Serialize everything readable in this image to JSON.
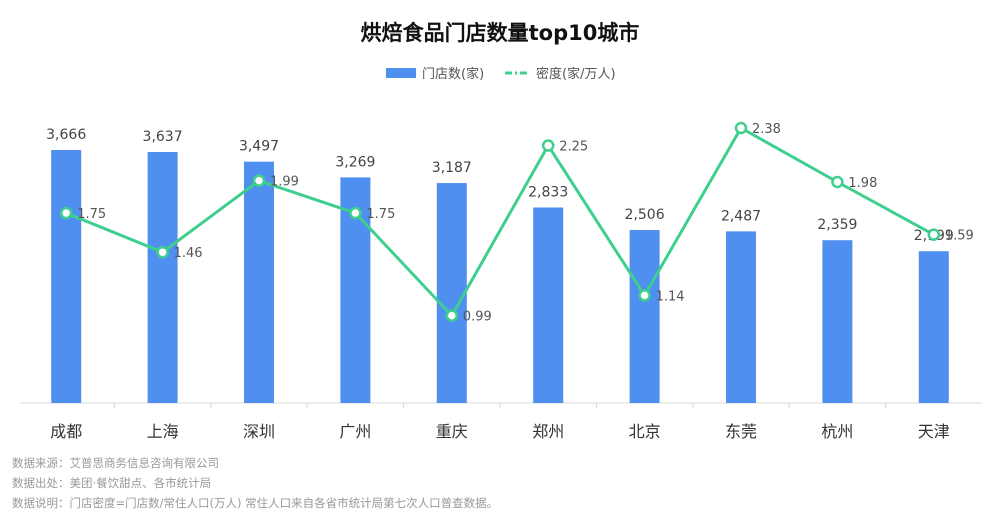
{
  "chart_data": {
    "type": "bar",
    "title": "烘焙食品门店数量top10城市",
    "categories": [
      "成都",
      "上海",
      "深圳",
      "广州",
      "重庆",
      "郑州",
      "北京",
      "东莞",
      "杭州",
      "天津"
    ],
    "series": [
      {
        "name": "门店数(家)",
        "type": "bar",
        "axis": "left",
        "values": [
          3666,
          3637,
          3497,
          3269,
          3187,
          2833,
          2506,
          2487,
          2359,
          2199
        ],
        "labels": [
          "3,666",
          "3,637",
          "3,497",
          "3,269",
          "3,187",
          "2,833",
          "2,506",
          "2,487",
          "2,359",
          "2,199"
        ],
        "color": "#4f8ff0"
      },
      {
        "name": "密度(家/万人)",
        "type": "line",
        "axis": "right",
        "values": [
          1.75,
          1.46,
          1.99,
          1.75,
          0.99,
          2.25,
          1.14,
          2.38,
          1.98,
          1.59
        ],
        "labels": [
          "1.75",
          "1.46",
          "1.99",
          "1.75",
          "0.99",
          "2.25",
          "1.14",
          "2.38",
          "1.98",
          "1.59"
        ],
        "color": "#3ecf8e"
      }
    ],
    "legend_position": "top-center",
    "grid": false
  },
  "footer": {
    "source": "数据来源：艾普思商务信息咨询有限公司",
    "origin": "数据出处：美团·餐饮甜点、各市统计局",
    "note": "数据说明：门店密度=门店数/常住人口(万人) 常住人口来自各省市统计局第七次人口普查数据。"
  }
}
